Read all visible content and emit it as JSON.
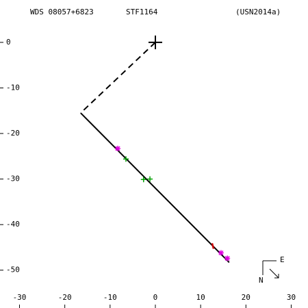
{
  "chart_data": {
    "type": "scatter",
    "title": "STF1164",
    "annotations": [
      "WDS 08057+6823",
      "(USN2014a)"
    ],
    "compass": {
      "north": "N",
      "east": "E"
    },
    "xlim": [
      -33.1,
      32.5
    ],
    "ylim": [
      -54.4,
      8.1
    ],
    "xticks": [
      -30,
      -20,
      -10,
      0,
      10,
      20,
      30
    ],
    "yticks": [
      0,
      -10,
      -20,
      -30,
      -40,
      -50
    ],
    "origin": {
      "x": 0,
      "y": 0
    },
    "lines": [
      {
        "style": "dashed",
        "color": "#000000",
        "x": [
          0,
          -16.5
        ],
        "values": [
          0,
          -15.5
        ]
      },
      {
        "style": "solid",
        "color": "#000000",
        "x": [
          -16.5,
          16.3
        ],
        "values": [
          -15.5,
          -48.3
        ]
      }
    ],
    "series": [
      {
        "marker": "asterisk",
        "color": "#e000e0",
        "x": [
          -8.3,
          14.5,
          15.9
        ],
        "values": [
          -23.3,
          -46.2,
          -47.4
        ]
      },
      {
        "marker": "plus",
        "color": "#00a000",
        "x": [
          -6.5,
          -2.6,
          -1.2
        ],
        "values": [
          -25.6,
          -30.1,
          -30.0
        ]
      },
      {
        "marker": "tick",
        "color": "#d00000",
        "x": [
          12.7
        ],
        "values": [
          -44.7
        ]
      }
    ]
  }
}
